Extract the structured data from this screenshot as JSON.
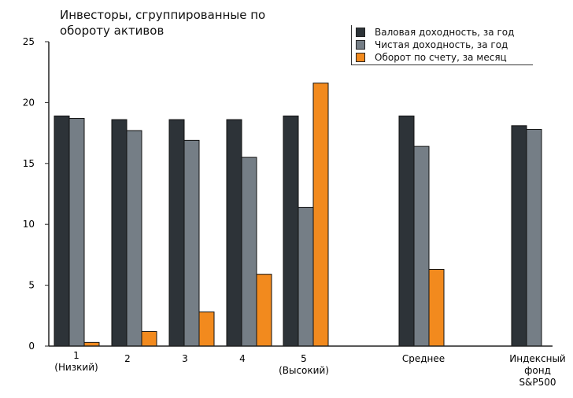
{
  "chart_data": {
    "type": "bar",
    "title": "Инвесторы, сгруппированные по обороту активов",
    "xlabel": "",
    "ylabel": "",
    "ylim": [
      0,
      25
    ],
    "yticks": [
      0,
      5,
      10,
      15,
      20,
      25
    ],
    "grid": false,
    "legend_position": "top-right",
    "categories": [
      [
        "1",
        "(Низкий)"
      ],
      [
        "2"
      ],
      [
        "3"
      ],
      [
        "4"
      ],
      [
        "5",
        "(Высокий)"
      ],
      [
        "Среднее"
      ],
      [
        "Индексный",
        "фонд",
        "S&P500"
      ]
    ],
    "series": [
      {
        "name": "Валовая доходность, за год",
        "color": "#2d3338",
        "values": [
          18.9,
          18.6,
          18.6,
          18.6,
          18.9,
          18.9,
          18.1
        ]
      },
      {
        "name": "Чистая доходность, за год",
        "color": "#757e86",
        "values": [
          18.7,
          17.7,
          16.9,
          15.5,
          11.4,
          16.4,
          17.8
        ]
      },
      {
        "name": "Оборот по счету, за месяц",
        "color": "#f28a1e",
        "values": [
          0.3,
          1.2,
          2.8,
          5.9,
          21.6,
          6.3,
          null
        ]
      }
    ]
  }
}
